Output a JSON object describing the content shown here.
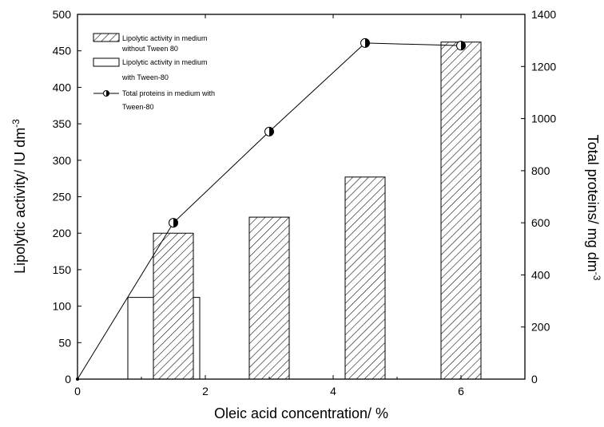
{
  "chart_data": {
    "type": "bar",
    "xlabel": "Oleic acid concentration/ %",
    "ylabel": "Lipolytic activity/ IU dm",
    "ylabel_sup": "-3",
    "y2label": "Total proteins/ mg dm",
    "y2label_sup": "-3",
    "xlim": [
      0,
      7
    ],
    "ylim": [
      0,
      500
    ],
    "y2lim": [
      0,
      1400
    ],
    "xticks": [
      0,
      2,
      4,
      6
    ],
    "yticks": [
      0,
      50,
      100,
      150,
      200,
      250,
      300,
      350,
      400,
      450,
      500
    ],
    "y2ticks": [
      0,
      200,
      400,
      600,
      800,
      1000,
      1200,
      1400
    ],
    "series": [
      {
        "name": "Lipolytic activity in medium without Tween 80",
        "legend_lines": [
          "Lipolytic activity in medium",
          "without Tween 80"
        ],
        "kind": "bar",
        "fill": "hatched",
        "x": [
          1.5,
          3,
          4.5,
          6
        ],
        "values": [
          200,
          222,
          277,
          462
        ]
      },
      {
        "name": "Lipolytic activity in medium with Tween-80",
        "legend_lines": [
          "Lipolytic activity in medium",
          "with Tween-80"
        ],
        "kind": "bar",
        "fill": "open",
        "x": [
          1.35
        ],
        "values": [
          112
        ]
      },
      {
        "name": "Total proteins in medium with Tween-80",
        "legend_lines": [
          "Total proteins in medium with",
          "Tween-80"
        ],
        "kind": "line",
        "axis": "right",
        "x": [
          0,
          1.5,
          3,
          4.5,
          6
        ],
        "values": [
          0,
          600,
          950,
          1290,
          1280
        ]
      }
    ],
    "legend_position": "top-left",
    "grid": false
  }
}
